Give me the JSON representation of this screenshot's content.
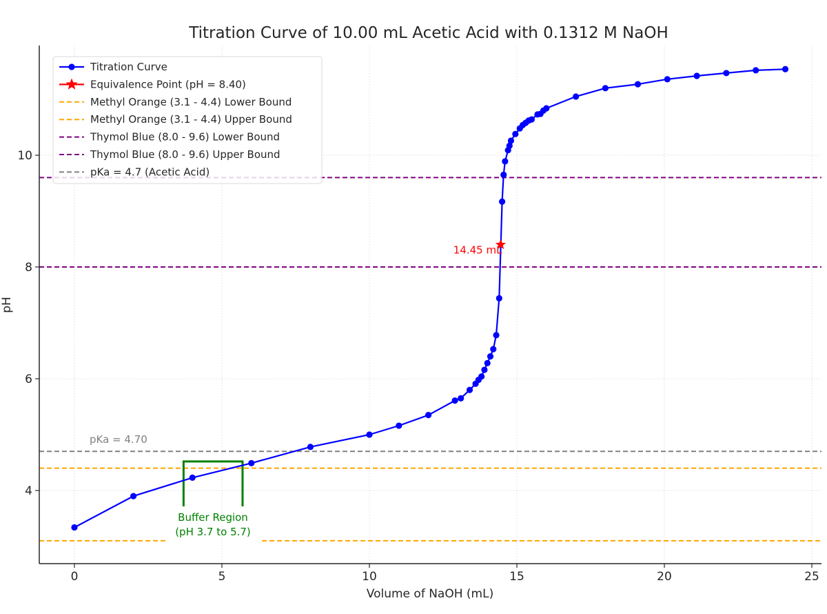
{
  "chart_data": {
    "type": "line",
    "title": "Titration Curve of 10.00 mL Acetic Acid with 0.1312 M NaOH",
    "xlabel": "Volume of NaOH (mL)",
    "ylabel": "pH",
    "xlim": [
      -1.15,
      25.35
    ],
    "ylim": [
      2.7,
      11.85
    ],
    "xticks": [
      0,
      5,
      10,
      15,
      20,
      25
    ],
    "yticks": [
      4,
      6,
      8,
      10
    ],
    "grid": true,
    "legend_position": "upper left",
    "series": [
      {
        "name": "Titration Curve",
        "color": "#0000ff",
        "marker": "circle",
        "x": [
          0,
          2,
          4,
          6,
          8,
          10,
          11,
          12,
          12.9,
          13.1,
          13.4,
          13.6,
          13.7,
          13.8,
          13.9,
          14.0,
          14.1,
          14.2,
          14.3,
          14.4,
          14.5,
          14.55,
          14.6,
          14.7,
          14.75,
          14.8,
          14.95,
          15.1,
          15.2,
          15.3,
          15.4,
          15.5,
          15.7,
          15.8,
          15.9,
          16.0,
          17.0,
          18.0,
          19.1,
          20.1,
          21.1,
          22.1,
          23.1,
          24.1
        ],
        "y": [
          3.34,
          3.9,
          4.23,
          4.49,
          4.78,
          5.0,
          5.16,
          5.35,
          5.61,
          5.65,
          5.8,
          5.91,
          5.98,
          6.04,
          6.16,
          6.28,
          6.4,
          6.53,
          6.78,
          7.44,
          9.17,
          9.65,
          9.89,
          10.09,
          10.17,
          10.26,
          10.38,
          10.48,
          10.54,
          10.58,
          10.62,
          10.64,
          10.73,
          10.74,
          10.8,
          10.84,
          11.05,
          11.2,
          11.27,
          11.36,
          11.42,
          11.47,
          11.52,
          11.54
        ]
      },
      {
        "name": "Equivalence Point (pH = 8.40)",
        "color": "#ff0000",
        "marker": "star",
        "x": [
          14.45
        ],
        "y": [
          8.4
        ]
      }
    ],
    "hlines": [
      {
        "name": "Methyl Orange (3.1 - 4.4) Lower Bound",
        "y": 3.1,
        "color": "#ffa500",
        "style": "dashed"
      },
      {
        "name": "Methyl Orange (3.1 - 4.4) Upper Bound",
        "y": 4.4,
        "color": "#ffa500",
        "style": "dashed"
      },
      {
        "name": "Thymol Blue (8.0 - 9.6) Lower Bound",
        "y": 8.0,
        "color": "#800080",
        "style": "dashed"
      },
      {
        "name": "Thymol Blue (8.0 - 9.6) Upper Bound",
        "y": 9.6,
        "color": "#800080",
        "style": "dashed"
      },
      {
        "name": "pKa = 4.7 (Acetic Acid)",
        "y": 4.7,
        "color": "#808080",
        "style": "dashed"
      }
    ],
    "annotations": [
      {
        "text": "14.45 mL",
        "x": 14.45,
        "y": 8.4,
        "color": "#ff0000"
      },
      {
        "text": "pKa = 4.70",
        "x": 0.5,
        "y": 4.78,
        "color": "#808080"
      },
      {
        "text": "Buffer Region",
        "x": 4.7,
        "y": 3.72,
        "color": "#008000"
      },
      {
        "text": "(pH 3.7 to 5.7)",
        "x": 4.7,
        "y": 3.48,
        "color": "#008000"
      }
    ],
    "buffer_bracket": {
      "x_start": 3.7,
      "x_end": 5.7,
      "y_top": 4.52,
      "y_bottom": 4.22,
      "color": "#008000"
    }
  },
  "legend": {
    "items": [
      {
        "label": "Titration Curve"
      },
      {
        "label": "Equivalence Point (pH = 8.40)"
      },
      {
        "label": "Methyl Orange (3.1 - 4.4) Lower Bound"
      },
      {
        "label": "Methyl Orange (3.1 - 4.4) Upper Bound"
      },
      {
        "label": "Thymol Blue (8.0 - 9.6) Lower Bound"
      },
      {
        "label": "Thymol Blue (8.0 - 9.6) Upper Bound"
      },
      {
        "label": "pKa = 4.7 (Acetic Acid)"
      }
    ]
  },
  "axes": {
    "x_tick_labels": [
      "0",
      "5",
      "10",
      "15",
      "20",
      "25"
    ],
    "y_tick_labels": [
      "4",
      "6",
      "8",
      "10"
    ]
  },
  "annotations": {
    "equivalence_label": "14.45 mL",
    "pka_label": "pKa = 4.70",
    "buffer_line1": "Buffer Region",
    "buffer_line2": "(pH 3.7 to 5.7)"
  }
}
